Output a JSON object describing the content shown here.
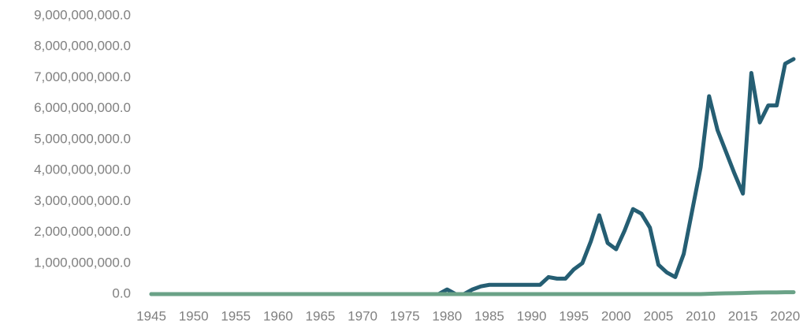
{
  "chart_data": {
    "type": "line",
    "x": [
      1945,
      1946,
      1947,
      1948,
      1949,
      1950,
      1951,
      1952,
      1953,
      1954,
      1955,
      1956,
      1957,
      1958,
      1959,
      1960,
      1961,
      1962,
      1963,
      1964,
      1965,
      1966,
      1967,
      1968,
      1969,
      1970,
      1971,
      1972,
      1973,
      1974,
      1975,
      1976,
      1977,
      1978,
      1979,
      1980,
      1981,
      1982,
      1983,
      1984,
      1985,
      1986,
      1987,
      1988,
      1989,
      1990,
      1991,
      1992,
      1993,
      1994,
      1995,
      1996,
      1997,
      1998,
      1999,
      2000,
      2001,
      2002,
      2003,
      2004,
      2005,
      2006,
      2007,
      2008,
      2009,
      2010,
      2011,
      2012,
      2013,
      2014,
      2015,
      2016,
      2017,
      2018,
      2019,
      2020,
      2021
    ],
    "series": [
      {
        "color": "#255e73",
        "values": [
          0,
          0,
          0,
          0,
          0,
          0,
          0,
          0,
          0,
          0,
          0,
          0,
          0,
          0,
          0,
          0,
          0,
          0,
          0,
          0,
          0,
          0,
          0,
          0,
          0,
          0,
          0,
          0,
          0,
          0,
          0,
          0,
          0,
          0,
          0,
          150000000,
          0,
          0,
          150000000,
          250000000,
          300000000,
          300000000,
          300000000,
          300000000,
          300000000,
          300000000,
          300000000,
          550000000,
          500000000,
          500000000,
          800000000,
          1000000000,
          1700000000,
          2550000000,
          1650000000,
          1450000000,
          2050000000,
          2750000000,
          2600000000,
          2150000000,
          950000000,
          700000000,
          550000000,
          1300000000,
          2700000000,
          4100000000,
          6400000000,
          5300000000,
          4600000000,
          3900000000,
          3250000000,
          7150000000,
          5550000000,
          6100000000,
          6100000000,
          7450000000,
          7600000000
        ]
      },
      {
        "color": "#6aa287",
        "values": [
          0,
          0,
          0,
          0,
          0,
          0,
          0,
          0,
          0,
          0,
          0,
          0,
          0,
          0,
          0,
          0,
          0,
          0,
          0,
          0,
          0,
          0,
          0,
          0,
          0,
          0,
          0,
          0,
          0,
          0,
          0,
          0,
          0,
          0,
          0,
          0,
          0,
          0,
          0,
          0,
          0,
          0,
          0,
          0,
          0,
          0,
          0,
          0,
          0,
          0,
          0,
          0,
          0,
          0,
          0,
          0,
          0,
          0,
          0,
          0,
          0,
          0,
          0,
          0,
          0,
          0,
          10000000,
          20000000,
          25000000,
          30000000,
          35000000,
          45000000,
          50000000,
          55000000,
          55000000,
          60000000,
          60000000
        ]
      }
    ],
    "xlim": [
      1945,
      2021
    ],
    "xticks": [
      1945,
      1950,
      1955,
      1960,
      1965,
      1970,
      1975,
      1980,
      1985,
      1990,
      1995,
      2000,
      2005,
      2010,
      2015,
      2020
    ],
    "ylim": [
      0,
      9000000000
    ],
    "yticks": [
      {
        "value": 0,
        "label": "0.0"
      },
      {
        "value": 1000000000,
        "label": "1,000,000,000.0"
      },
      {
        "value": 2000000000,
        "label": "2,000,000,000.0"
      },
      {
        "value": 3000000000,
        "label": "3,000,000,000.0"
      },
      {
        "value": 4000000000,
        "label": "4,000,000,000.0"
      },
      {
        "value": 5000000000,
        "label": "5,000,000,000.0"
      },
      {
        "value": 6000000000,
        "label": "6,000,000,000.0"
      },
      {
        "value": 7000000000,
        "label": "7,000,000,000.0"
      },
      {
        "value": 8000000000,
        "label": "8,000,000,000.0"
      },
      {
        "value": 9000000000,
        "label": "9,000,000,000.0"
      }
    ],
    "grid": false
  }
}
